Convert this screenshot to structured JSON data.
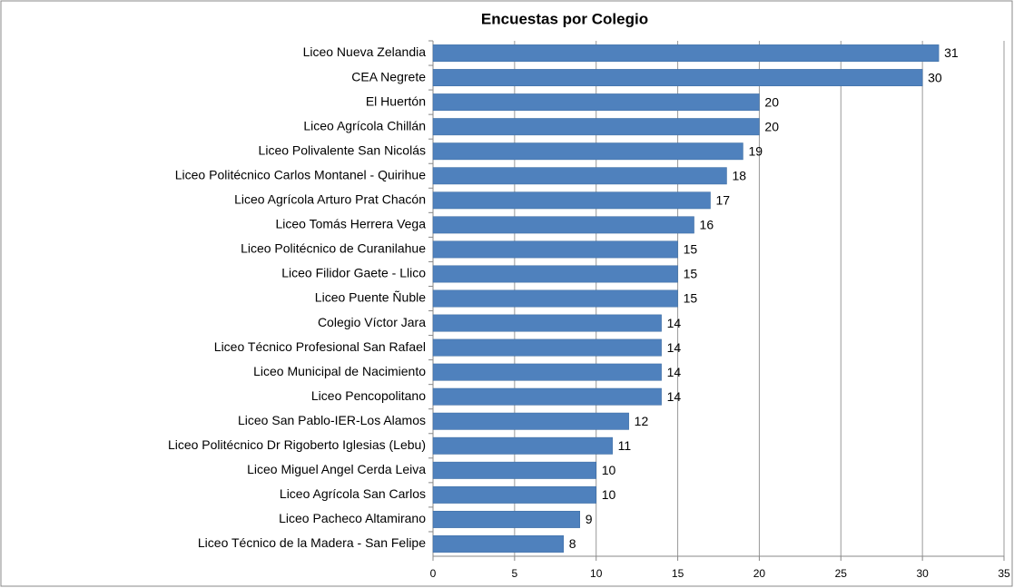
{
  "chart_data": {
    "type": "bar",
    "orientation": "horizontal",
    "title": "Encuestas por Colegio",
    "categories": [
      "Liceo Nueva Zelandia",
      "CEA Negrete",
      "El Huertón",
      "Liceo Agrícola Chillán",
      "Liceo Polivalente San Nicolás",
      "Liceo Politécnico Carlos Montanel - Quirihue",
      "Liceo Agrícola Arturo Prat Chacón",
      "Liceo Tomás Herrera Vega",
      "Liceo Politécnico de Curanilahue",
      "Liceo Filidor Gaete - Llico",
      "Liceo Puente Ñuble",
      "Colegio Víctor Jara",
      "Liceo Técnico Profesional San Rafael",
      "Liceo Municipal de Nacimiento",
      "Liceo Pencopolitano",
      "Liceo San Pablo-IER-Los Alamos",
      "Liceo Politécnico Dr Rigoberto Iglesias (Lebu)",
      "Liceo Miguel Angel Cerda Leiva",
      "Liceo Agrícola San Carlos",
      "Liceo Pacheco Altamirano",
      "Liceo Técnico de la Madera - San Felipe"
    ],
    "values": [
      31,
      30,
      20,
      20,
      19,
      18,
      17,
      16,
      15,
      15,
      15,
      14,
      14,
      14,
      14,
      12,
      11,
      10,
      10,
      9,
      8
    ],
    "color": "#4f81bd",
    "xlim": [
      0,
      35
    ],
    "xticks": [
      0,
      5,
      10,
      15,
      20,
      25,
      30,
      35
    ],
    "grid": true
  }
}
